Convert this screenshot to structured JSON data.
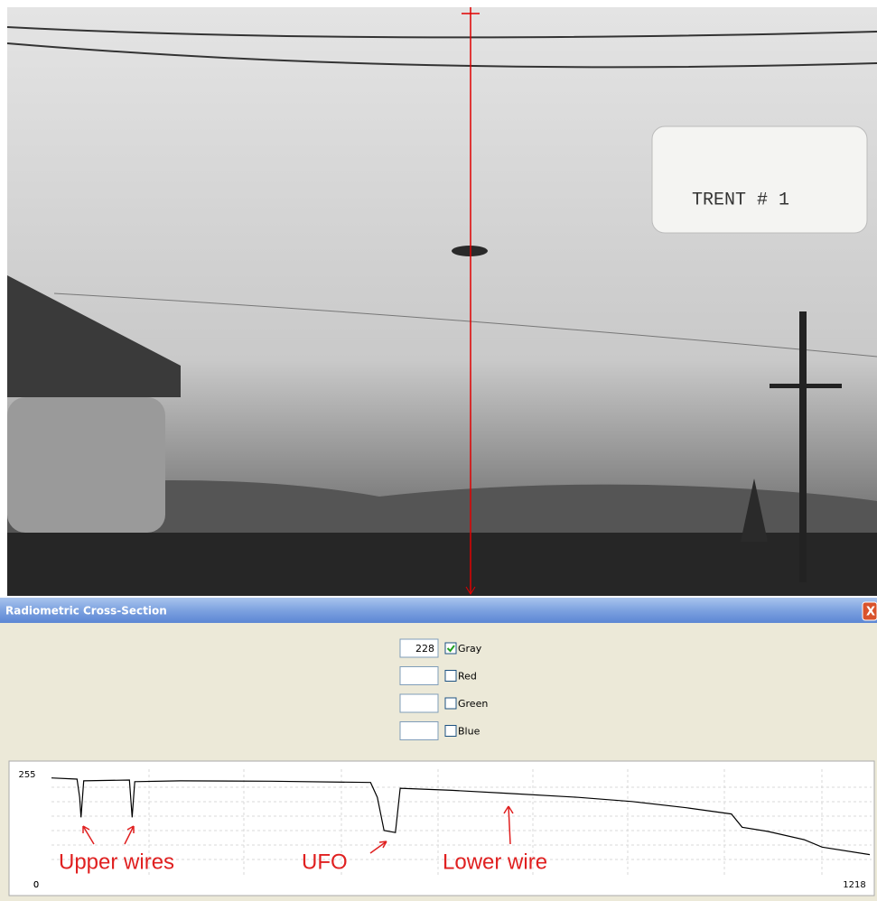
{
  "photo": {
    "label": "TRENT # 1"
  },
  "window": {
    "title": "Radiometric Cross-Section",
    "close": "X"
  },
  "channels": [
    {
      "value": "228",
      "name": "Gray",
      "checked": true
    },
    {
      "name": "Red",
      "checked": false
    },
    {
      "name": "Green",
      "checked": false
    },
    {
      "name": "Blue",
      "checked": false
    }
  ],
  "chart_data": {
    "type": "line",
    "xlim": [
      0,
      1218
    ],
    "ylim": [
      0,
      255
    ],
    "xticks": [
      0,
      1218
    ],
    "yticks": [
      0,
      255
    ],
    "series": [
      {
        "name": "Gray",
        "color": "#000000",
        "x": [
          0,
          38,
          42,
          44,
          48,
          116,
          120,
          124,
          192,
          327,
          475,
          485,
          495,
          512,
          519,
          596,
          676,
          784,
          864,
          945,
          1012,
          1028,
          1066,
          1120,
          1147,
          1218
        ],
        "values": [
          247,
          244,
          200,
          152,
          240,
          242,
          152,
          238,
          240,
          239,
          236,
          200,
          120,
          115,
          222,
          217,
          210,
          200,
          190,
          175,
          160,
          128,
          118,
          98,
          80,
          62
        ]
      }
    ],
    "annotations": [
      "Upper wires",
      "UFO",
      "Lower wire"
    ]
  }
}
